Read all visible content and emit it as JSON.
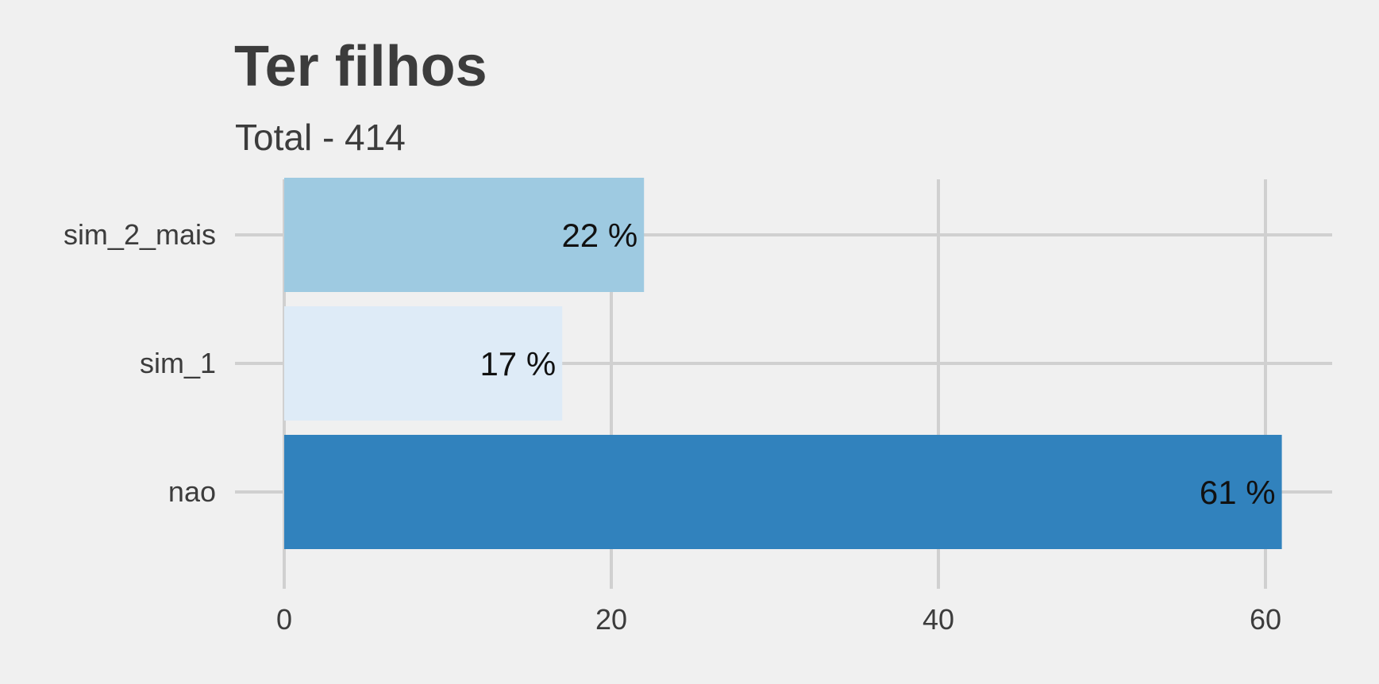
{
  "chart_data": {
    "type": "bar",
    "orientation": "horizontal",
    "title": "Ter filhos",
    "subtitle": "Total - 414",
    "categories": [
      "nao",
      "sim_1",
      "sim_2_mais"
    ],
    "values": [
      61,
      17,
      22
    ],
    "data_labels": [
      "61 %",
      "17 %",
      "22 %"
    ],
    "colors": [
      "#3182bd",
      "#deebf7",
      "#9ecae1"
    ],
    "xlim": [
      0,
      64
    ],
    "xticks": [
      0,
      20,
      40,
      60
    ],
    "xtick_labels": [
      "0",
      "20",
      "40",
      "60"
    ],
    "grid": true,
    "grid_color": "#d0d0d0",
    "background": "#f0f0f0"
  }
}
